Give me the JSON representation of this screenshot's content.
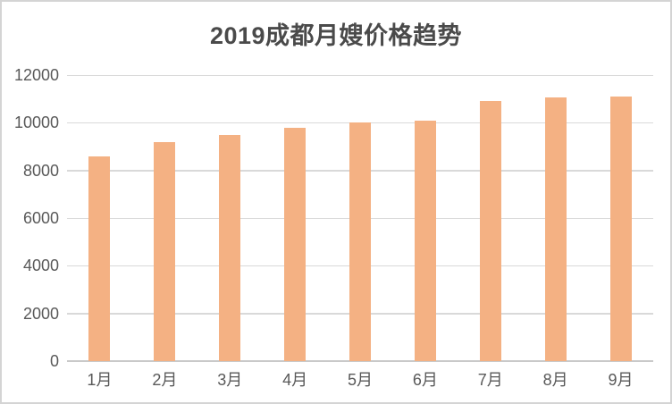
{
  "window": {
    "background": "#ffffff",
    "border_color": "#d4d4d4"
  },
  "chart_data": {
    "type": "bar",
    "title": "2019成都月嫂价格趋势",
    "categories": [
      "1月",
      "2月",
      "3月",
      "4月",
      "5月",
      "6月",
      "7月",
      "8月",
      "9月"
    ],
    "values": [
      8600,
      9200,
      9500,
      9800,
      10000,
      10100,
      10900,
      11050,
      11100
    ],
    "xlabel": "",
    "ylabel": "",
    "ylim": [
      0,
      12000
    ],
    "yticks": [
      0,
      2000,
      4000,
      6000,
      8000,
      10000,
      12000
    ],
    "grid": true,
    "legend": "none",
    "colors": {
      "bar_fill": "#F4B183",
      "gridline": "#D9D9D9",
      "axis_line": "#C9C9C9",
      "title_text": "#4a4a4a",
      "tick_label_text": "#595959"
    }
  }
}
